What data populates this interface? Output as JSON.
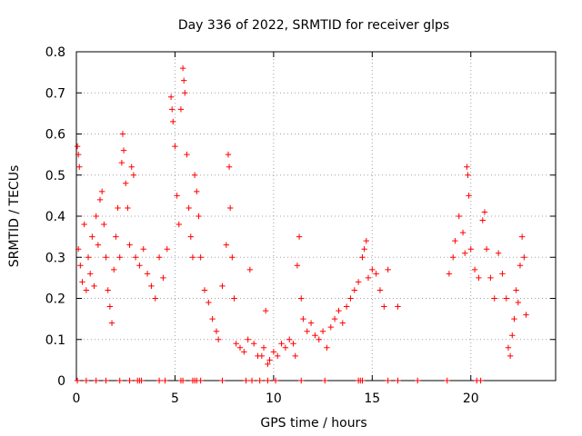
{
  "colors": {
    "marker": "#ff0000",
    "grid": "#a0a0a0",
    "axis": "#000000",
    "background": "#ffffff"
  },
  "chart_data": {
    "type": "scatter",
    "title": "Day 336 of 2022, SRMTID for receiver glps",
    "xlabel": "GPS time / hours",
    "ylabel": "SRMTID / TECUs",
    "xlim": [
      0,
      24.3
    ],
    "ylim": [
      0,
      0.8
    ],
    "xticks": [
      0,
      5,
      10,
      15,
      20
    ],
    "xtick_labels": [
      "0",
      "5",
      "10",
      "15",
      "20"
    ],
    "yticks": [
      0,
      0.1,
      0.2,
      0.3,
      0.4,
      0.5,
      0.6,
      0.7,
      0.8
    ],
    "ytick_labels": [
      "0",
      "0.1",
      "0.2",
      "0.3",
      "0.4",
      "0.5",
      "0.6",
      "0.7",
      "0.8"
    ],
    "grid": true,
    "marker": "+",
    "series": [
      {
        "name": "SRMTID",
        "points": [
          [
            0.05,
            0.57
          ],
          [
            0.1,
            0.55
          ],
          [
            0.15,
            0.52
          ],
          [
            0.1,
            0.32
          ],
          [
            0.2,
            0.28
          ],
          [
            0.3,
            0.24
          ],
          [
            0.4,
            0.38
          ],
          [
            0.5,
            0.22
          ],
          [
            0.6,
            0.3
          ],
          [
            0.7,
            0.26
          ],
          [
            0.8,
            0.35
          ],
          [
            0.9,
            0.23
          ],
          [
            1.0,
            0.4
          ],
          [
            1.1,
            0.33
          ],
          [
            1.2,
            0.44
          ],
          [
            1.3,
            0.46
          ],
          [
            1.4,
            0.38
          ],
          [
            1.5,
            0.3
          ],
          [
            1.6,
            0.22
          ],
          [
            1.7,
            0.18
          ],
          [
            1.8,
            0.14
          ],
          [
            1.9,
            0.27
          ],
          [
            2.0,
            0.35
          ],
          [
            2.1,
            0.42
          ],
          [
            2.2,
            0.3
          ],
          [
            2.3,
            0.53
          ],
          [
            2.35,
            0.6
          ],
          [
            2.4,
            0.56
          ],
          [
            2.5,
            0.48
          ],
          [
            2.6,
            0.42
          ],
          [
            2.7,
            0.33
          ],
          [
            2.8,
            0.52
          ],
          [
            2.9,
            0.5
          ],
          [
            3.0,
            0.3
          ],
          [
            3.2,
            0.28
          ],
          [
            3.4,
            0.32
          ],
          [
            3.6,
            0.26
          ],
          [
            3.8,
            0.23
          ],
          [
            4.0,
            0.2
          ],
          [
            4.2,
            0.3
          ],
          [
            4.4,
            0.25
          ],
          [
            4.6,
            0.32
          ],
          [
            4.8,
            0.69
          ],
          [
            4.85,
            0.66
          ],
          [
            4.9,
            0.63
          ],
          [
            5.0,
            0.57
          ],
          [
            5.1,
            0.45
          ],
          [
            5.2,
            0.38
          ],
          [
            5.3,
            0.66
          ],
          [
            5.4,
            0.76
          ],
          [
            5.45,
            0.73
          ],
          [
            5.5,
            0.7
          ],
          [
            5.6,
            0.55
          ],
          [
            5.7,
            0.42
          ],
          [
            5.8,
            0.35
          ],
          [
            5.9,
            0.3
          ],
          [
            6.0,
            0.5
          ],
          [
            6.1,
            0.46
          ],
          [
            6.2,
            0.4
          ],
          [
            6.3,
            0.3
          ],
          [
            6.5,
            0.22
          ],
          [
            6.7,
            0.19
          ],
          [
            6.9,
            0.15
          ],
          [
            7.1,
            0.12
          ],
          [
            7.2,
            0.1
          ],
          [
            7.4,
            0.23
          ],
          [
            7.6,
            0.33
          ],
          [
            7.7,
            0.55
          ],
          [
            7.75,
            0.52
          ],
          [
            7.8,
            0.42
          ],
          [
            7.9,
            0.3
          ],
          [
            8.0,
            0.2
          ],
          [
            8.1,
            0.09
          ],
          [
            8.3,
            0.08
          ],
          [
            8.5,
            0.07
          ],
          [
            8.7,
            0.1
          ],
          [
            8.8,
            0.27
          ],
          [
            9.0,
            0.09
          ],
          [
            9.2,
            0.06
          ],
          [
            9.4,
            0.06
          ],
          [
            9.5,
            0.08
          ],
          [
            9.6,
            0.17
          ],
          [
            9.7,
            0.04
          ],
          [
            9.8,
            0.05
          ],
          [
            10.0,
            0.07
          ],
          [
            10.2,
            0.06
          ],
          [
            10.4,
            0.09
          ],
          [
            10.6,
            0.08
          ],
          [
            10.8,
            0.1
          ],
          [
            11.0,
            0.09
          ],
          [
            11.1,
            0.06
          ],
          [
            11.2,
            0.28
          ],
          [
            11.3,
            0.35
          ],
          [
            11.4,
            0.2
          ],
          [
            11.5,
            0.15
          ],
          [
            11.7,
            0.12
          ],
          [
            11.9,
            0.14
          ],
          [
            12.1,
            0.11
          ],
          [
            12.3,
            0.1
          ],
          [
            12.5,
            0.12
          ],
          [
            12.7,
            0.08
          ],
          [
            12.9,
            0.13
          ],
          [
            13.1,
            0.15
          ],
          [
            13.3,
            0.17
          ],
          [
            13.5,
            0.14
          ],
          [
            13.7,
            0.18
          ],
          [
            13.9,
            0.2
          ],
          [
            14.1,
            0.22
          ],
          [
            14.3,
            0.24
          ],
          [
            14.5,
            0.3
          ],
          [
            14.6,
            0.32
          ],
          [
            14.7,
            0.34
          ],
          [
            14.8,
            0.25
          ],
          [
            15.0,
            0.27
          ],
          [
            15.2,
            0.26
          ],
          [
            15.4,
            0.22
          ],
          [
            15.6,
            0.18
          ],
          [
            15.8,
            0.27
          ],
          [
            16.3,
            0.18
          ],
          [
            18.9,
            0.26
          ],
          [
            19.1,
            0.3
          ],
          [
            19.2,
            0.34
          ],
          [
            19.4,
            0.4
          ],
          [
            19.6,
            0.36
          ],
          [
            19.7,
            0.31
          ],
          [
            19.8,
            0.52
          ],
          [
            19.85,
            0.5
          ],
          [
            19.9,
            0.45
          ],
          [
            20.0,
            0.32
          ],
          [
            20.2,
            0.27
          ],
          [
            20.4,
            0.25
          ],
          [
            20.6,
            0.39
          ],
          [
            20.7,
            0.41
          ],
          [
            20.8,
            0.32
          ],
          [
            21.0,
            0.25
          ],
          [
            21.2,
            0.2
          ],
          [
            21.4,
            0.31
          ],
          [
            21.6,
            0.26
          ],
          [
            21.8,
            0.2
          ],
          [
            21.9,
            0.08
          ],
          [
            22.0,
            0.06
          ],
          [
            22.1,
            0.11
          ],
          [
            22.2,
            0.15
          ],
          [
            22.3,
            0.22
          ],
          [
            22.4,
            0.19
          ],
          [
            22.5,
            0.28
          ],
          [
            22.6,
            0.35
          ],
          [
            22.7,
            0.3
          ],
          [
            22.8,
            0.16
          ]
        ]
      }
    ],
    "zero_points_x": [
      0.05,
      0.5,
      1.0,
      1.5,
      2.2,
      2.7,
      3.1,
      3.2,
      3.3,
      4.2,
      4.5,
      5.3,
      5.4,
      5.9,
      6.0,
      6.1,
      6.3,
      7.4,
      8.6,
      8.9,
      9.3,
      9.7,
      10.1,
      11.4,
      12.6,
      14.3,
      14.4,
      14.5,
      15.8,
      16.3,
      17.3,
      18.8,
      20.3,
      20.5
    ]
  }
}
